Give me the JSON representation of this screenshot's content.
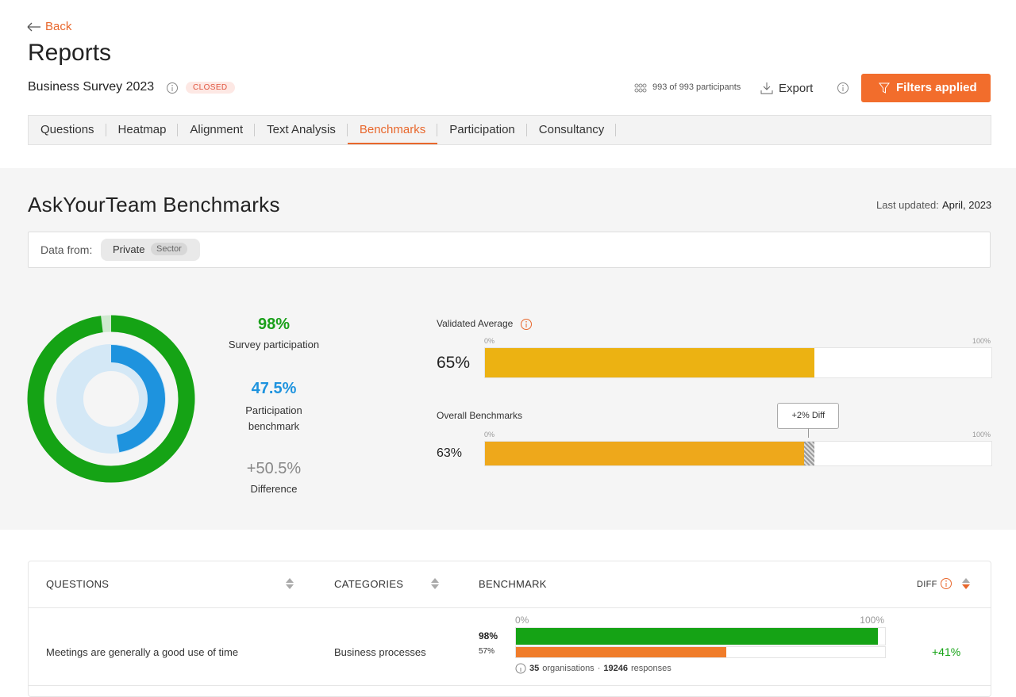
{
  "header": {
    "back": "Back",
    "title": "Reports",
    "survey": "Business Survey 2023",
    "status": "CLOSED",
    "participants": "993 of 993 participants",
    "export": "Export",
    "filters": "Filters applied"
  },
  "tabs": [
    "Questions",
    "Heatmap",
    "Alignment",
    "Text Analysis",
    "Benchmarks",
    "Participation",
    "Consultancy"
  ],
  "active_tab": 4,
  "benchmarks": {
    "title": "AskYourTeam Benchmarks",
    "updated_label": "Last updated:",
    "updated": "April, 2023",
    "data_from": "Data from:",
    "chip": "Private",
    "chip_tag": "Sector",
    "participation": {
      "value": 98,
      "label": "98%",
      "caption": "Survey participation"
    },
    "participation_benchmark": {
      "value": 47.5,
      "label": "47.5%",
      "caption": "Participation benchmark"
    },
    "difference": {
      "value": 50.5,
      "label": "+50.5%",
      "caption": "Difference"
    },
    "axis": [
      {
        "value": 0,
        "label": "0%"
      },
      {
        "value": 100,
        "label": "100%"
      }
    ],
    "validated": {
      "name": "Validated Average",
      "value": 65,
      "label": "65%"
    },
    "overall": {
      "name": "Overall Benchmarks",
      "value": 63,
      "label": "63%"
    },
    "diff": {
      "value": 2,
      "label": "+2% Diff"
    }
  },
  "table": {
    "headers": [
      "QUESTIONS",
      "CATEGORIES",
      "BENCHMARK",
      "DIFF"
    ],
    "rows": [
      {
        "question": "Meetings are generally a good use of time",
        "category": "Business processes",
        "axis": [
          {
            "value": 0,
            "label": "0%"
          },
          {
            "value": 100,
            "label": "100%"
          }
        ],
        "score": {
          "value": 98,
          "label": "98%"
        },
        "benchmark": {
          "value": 57,
          "label": "57%"
        },
        "organisations": "35",
        "organisations_label": "organisations",
        "separator": "·",
        "responses": "19246",
        "responses_label": "responses",
        "diff": {
          "value": 41,
          "label": "+41%"
        }
      }
    ]
  }
}
